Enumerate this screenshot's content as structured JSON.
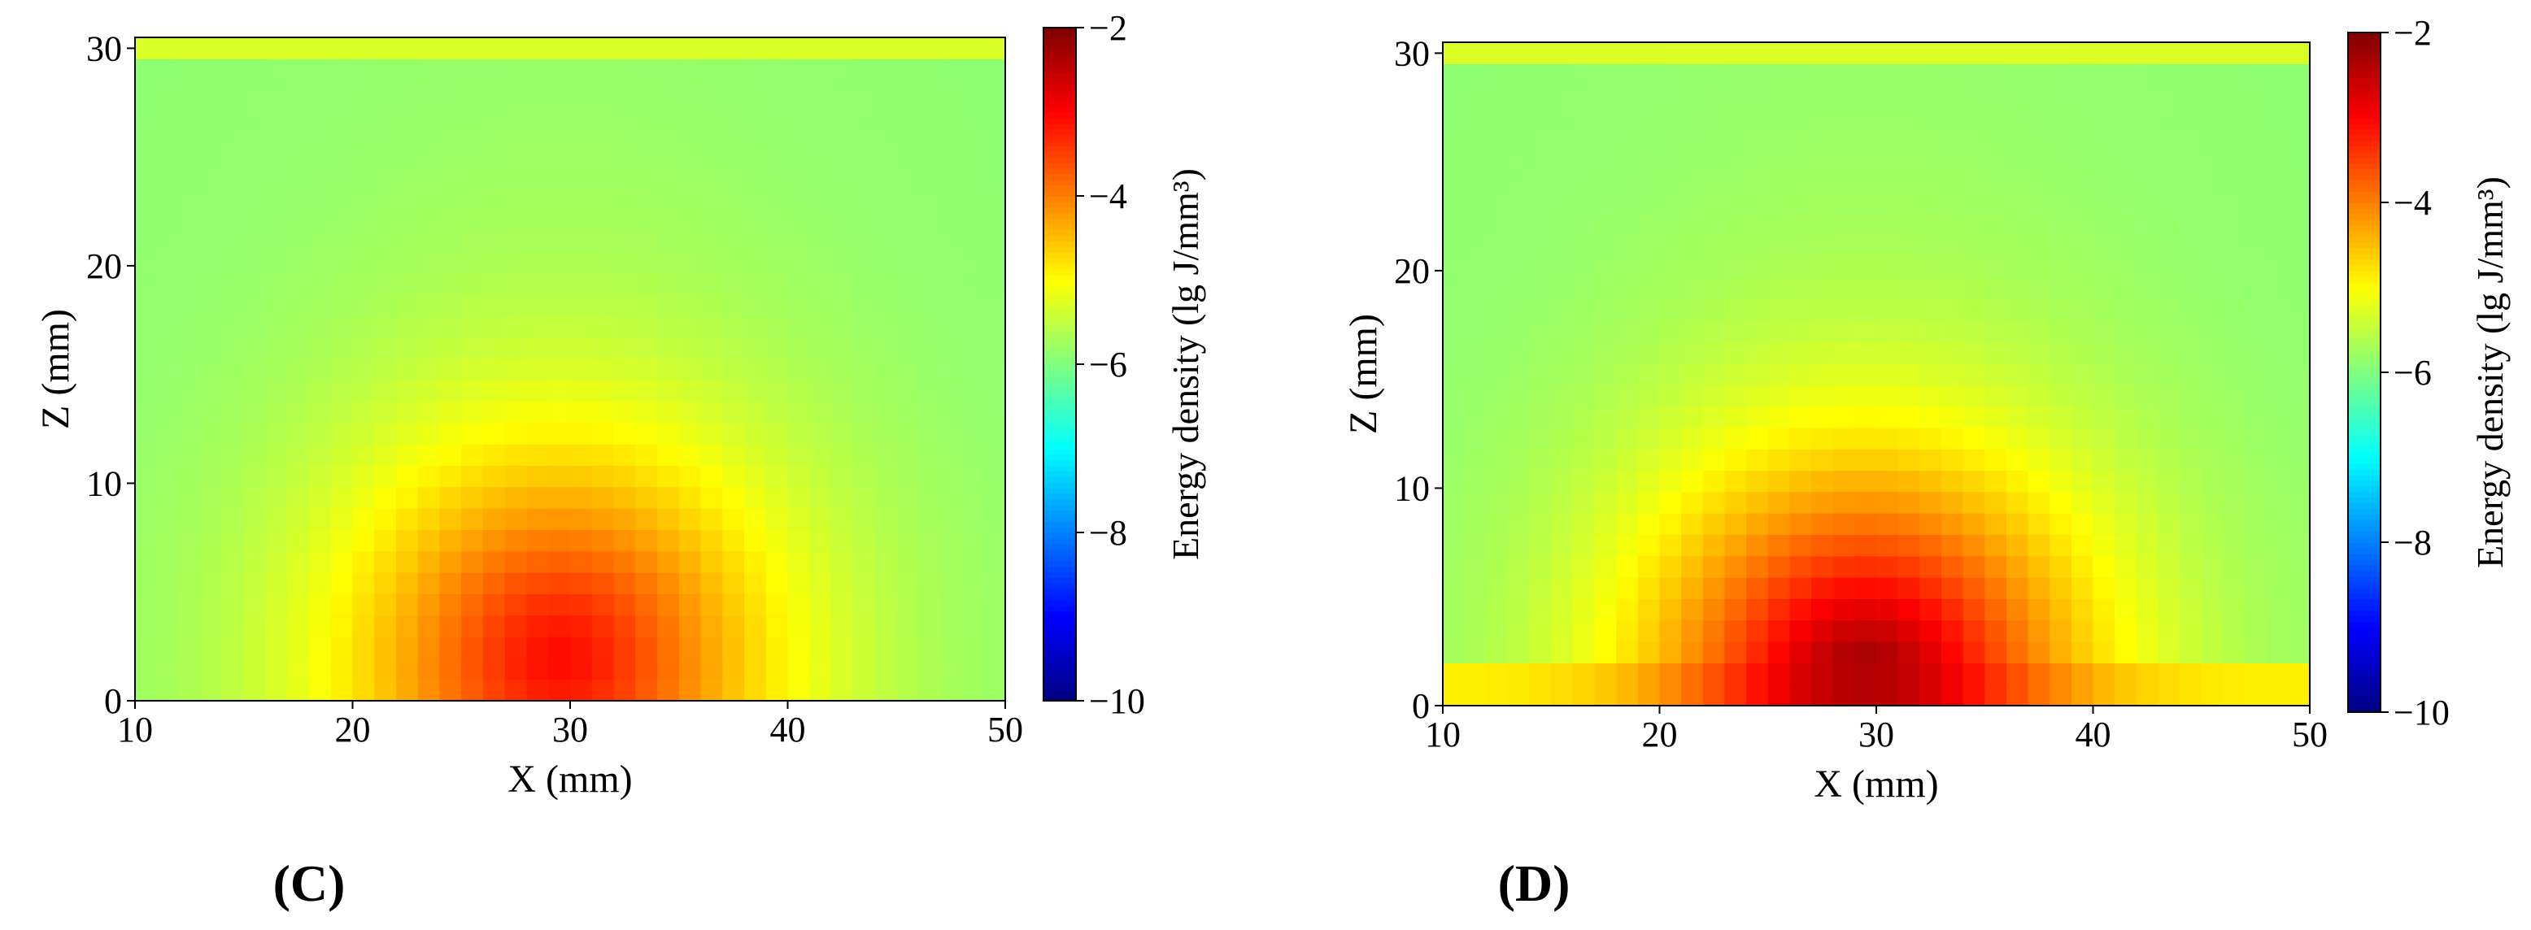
{
  "chart_data": [
    {
      "type": "heatmap",
      "panel_label": "(C)",
      "xlabel": "X (mm)",
      "ylabel": "Z (mm)",
      "xlim": [
        10,
        50
      ],
      "ylim": [
        0,
        30.5
      ],
      "xticks": [
        "10",
        "20",
        "30",
        "40",
        "50"
      ],
      "yticks": [
        "0",
        "10",
        "20",
        "30"
      ],
      "colorbar": {
        "label": "Energy density (lg J/mm³)",
        "range": [
          -10,
          -2
        ],
        "ticks": [
          "−2",
          "−4",
          "−6",
          "−8",
          "−10"
        ],
        "colormap": "jet"
      },
      "field": {
        "description_values": "lg energy density",
        "source": {
          "x": 29.5,
          "z": 2.0,
          "peak": -3.3
        },
        "background": -5.9,
        "top_band": {
          "z_from": 29.6,
          "value": -5.3
        }
      }
    },
    {
      "type": "heatmap",
      "panel_label": "(D)",
      "xlabel": "X (mm)",
      "ylabel": "Z (mm)",
      "xlim": [
        10,
        50
      ],
      "ylim": [
        0,
        30.5
      ],
      "xticks": [
        "10",
        "20",
        "30",
        "40",
        "50"
      ],
      "yticks": [
        "0",
        "10",
        "20",
        "30"
      ],
      "colorbar": {
        "label": "Energy density (lg J/mm³)",
        "range": [
          -10,
          -2
        ],
        "ticks": [
          "−2",
          "−4",
          "−6",
          "−8",
          "−10"
        ],
        "colormap": "jet"
      },
      "field": {
        "description_values": "lg energy density",
        "source": {
          "x": 29.5,
          "z": 1.0,
          "peak": -2.4
        },
        "background": -5.9,
        "top_band": {
          "z_from": 29.6,
          "value": -5.3
        },
        "bottom_band": {
          "z_to": 1.5,
          "edge_value": -4.9,
          "peak": -2.4
        }
      }
    }
  ]
}
